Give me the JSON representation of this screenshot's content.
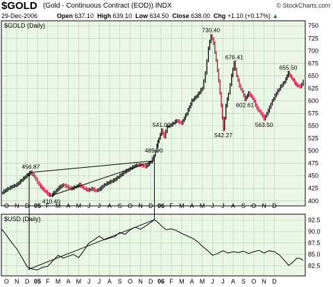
{
  "header": {
    "symbol": "$GOLD",
    "name": "(Gold - Continuous Contract (EOD))",
    "exchange": "INDX",
    "date": "29-Dec-2006",
    "open_label": "Open",
    "open": "637.10",
    "high_label": "High",
    "high": "639.10",
    "low_label": "Low",
    "low": "634.50",
    "close_label": "Close",
    "close": "638.00",
    "chg_label": "Chg",
    "chg": "+1.10 (+0.17%)",
    "chg_arrow": "▲",
    "logo": "© StockCharts.com"
  },
  "colors": {
    "panel_bg": "#eaf7e6",
    "grid": "#b9d6b3",
    "up_bar": "#000000",
    "down_bar": "#cc0033",
    "line": "#000000"
  },
  "chart_data": [
    {
      "type": "line",
      "panel_label": "$GOLD (Daily)",
      "y_ticks": [
        400,
        425,
        450,
        475,
        500,
        525,
        550,
        575,
        600,
        625,
        650,
        675,
        700,
        725,
        750
      ],
      "ylim": [
        390,
        760
      ],
      "x_ticks": [
        "O",
        "N",
        "D",
        "05",
        "F",
        "M",
        "A",
        "M",
        "J",
        "J",
        "A",
        "S",
        "O",
        "N",
        "D",
        "06",
        "F",
        "M",
        "A",
        "M",
        "J",
        "J",
        "A",
        "S",
        "O",
        "N",
        "D"
      ],
      "x_bold": [
        "05",
        "06"
      ],
      "series": [
        {
          "points": [
            [
              0,
              415
            ],
            [
              0.5,
              422
            ],
            [
              1,
              428
            ],
            [
              1.5,
              432
            ],
            [
              2,
              442
            ],
            [
              2.5,
              451
            ],
            [
              2.85,
              456.87
            ],
            [
              3.2,
              448
            ],
            [
              3.5,
              437
            ],
            [
              3.8,
              428
            ],
            [
              4.2,
              420
            ],
            [
              4.6,
              412
            ],
            [
              4.85,
              410.4
            ],
            [
              5.2,
              418
            ],
            [
              5.6,
              426
            ],
            [
              6.0,
              432
            ],
            [
              6.4,
              428
            ],
            [
              6.8,
              424
            ],
            [
              7.2,
              428
            ],
            [
              7.6,
              432
            ],
            [
              8.0,
              425
            ],
            [
              8.4,
              421
            ],
            [
              8.8,
              424
            ],
            [
              9.2,
              420
            ],
            [
              9.6,
              424
            ],
            [
              10.0,
              432
            ],
            [
              10.5,
              437
            ],
            [
              11.0,
              442
            ],
            [
              11.5,
              450
            ],
            [
              12.0,
              458
            ],
            [
              12.5,
              464
            ],
            [
              13.0,
              470
            ],
            [
              13.5,
              472
            ],
            [
              14.0,
              468
            ],
            [
              14.5,
              478
            ],
            [
              14.8,
              489.9
            ],
            [
              15.1,
              510
            ],
            [
              15.3,
              525
            ],
            [
              15.55,
              541
            ],
            [
              15.8,
              528
            ],
            [
              16.1,
              548
            ],
            [
              16.5,
              552
            ],
            [
              17.0,
              560
            ],
            [
              17.5,
              555
            ],
            [
              18.0,
              575
            ],
            [
              18.5,
              600
            ],
            [
              19.0,
              610
            ],
            [
              19.5,
              625
            ],
            [
              19.8,
              655
            ],
            [
              20.1,
              705
            ],
            [
              20.35,
              730.4
            ],
            [
              20.6,
              715
            ],
            [
              20.85,
              680
            ],
            [
              21.1,
              640
            ],
            [
              21.35,
              590
            ],
            [
              21.55,
              542.27
            ],
            [
              21.8,
              590
            ],
            [
              22.05,
              615
            ],
            [
              22.35,
              650
            ],
            [
              22.6,
              676.41
            ],
            [
              22.85,
              650
            ],
            [
              23.1,
              630
            ],
            [
              23.4,
              618
            ],
            [
              23.65,
              602.61
            ],
            [
              24.0,
              615
            ],
            [
              24.4,
              605
            ],
            [
              24.8,
              585
            ],
            [
              25.2,
              575
            ],
            [
              25.5,
              563.5
            ],
            [
              25.9,
              580
            ],
            [
              26.3,
              600
            ],
            [
              26.7,
              615
            ],
            [
              27.1,
              628
            ],
            [
              27.5,
              638
            ],
            [
              27.85,
              655.5
            ],
            [
              28.2,
              645
            ],
            [
              28.6,
              632
            ],
            [
              29.0,
              628
            ],
            [
              29.3,
              638
            ]
          ]
        }
      ],
      "annotations": [
        {
          "x": 2.85,
          "y": 456.87,
          "label": "456.87"
        },
        {
          "x": 4.85,
          "y": 410.4,
          "label": "410.40"
        },
        {
          "x": 14.8,
          "y": 489.9,
          "label": "489.90"
        },
        {
          "x": 15.55,
          "y": 541.0,
          "label": "541.00"
        },
        {
          "x": 20.35,
          "y": 730.4,
          "label": "730.40"
        },
        {
          "x": 21.55,
          "y": 542.27,
          "label": "542.27"
        },
        {
          "x": 22.6,
          "y": 676.41,
          "label": "676.41"
        },
        {
          "x": 23.65,
          "y": 602.61,
          "label": "602.61"
        },
        {
          "x": 25.5,
          "y": 563.5,
          "label": "563.50"
        },
        {
          "x": 27.85,
          "y": 655.5,
          "label": "655.50"
        }
      ],
      "trendlines": [
        [
          [
            2.85,
            456.87
          ],
          [
            14.8,
            480
          ]
        ],
        [
          [
            4.85,
            410.4
          ],
          [
            14.8,
            480
          ]
        ]
      ]
    },
    {
      "type": "line",
      "panel_label": "$USD (Daily)",
      "y_ticks": [
        82.5,
        85.0,
        87.5,
        90.0,
        92.5
      ],
      "ylim": [
        80.3,
        93.8
      ],
      "x_ticks": [
        "O",
        "N",
        "D",
        "05",
        "F",
        "M",
        "A",
        "M",
        "J",
        "J",
        "A",
        "S",
        "O",
        "N",
        "D",
        "06",
        "F",
        "M",
        "A",
        "M",
        "J",
        "J",
        "A",
        "S",
        "O",
        "N",
        "D"
      ],
      "x_bold": [
        "05",
        "06"
      ],
      "series": [
        {
          "points": [
            [
              0,
              90.6
            ],
            [
              0.5,
              89.2
            ],
            [
              1,
              87.6
            ],
            [
              1.5,
              86.2
            ],
            [
              2,
              84.3
            ],
            [
              2.5,
              82.3
            ],
            [
              3.0,
              81.8
            ],
            [
              3.5,
              81.6
            ],
            [
              4.0,
              82.2
            ],
            [
              4.5,
              82.4
            ],
            [
              5.0,
              83.6
            ],
            [
              5.5,
              84.8
            ],
            [
              6.0,
              84.2
            ],
            [
              6.5,
              84.6
            ],
            [
              7.0,
              85.0
            ],
            [
              7.5,
              84.3
            ],
            [
              8.0,
              85.8
            ],
            [
              8.5,
              87.5
            ],
            [
              9.0,
              88.2
            ],
            [
              9.5,
              89.0
            ],
            [
              10.0,
              88.2
            ],
            [
              10.5,
              88.6
            ],
            [
              11.0,
              88.9
            ],
            [
              11.5,
              89.8
            ],
            [
              12.0,
              89.4
            ],
            [
              12.5,
              90.4
            ],
            [
              13.0,
              91.0
            ],
            [
              13.5,
              90.5
            ],
            [
              14.0,
              91.2
            ],
            [
              14.5,
              92.0
            ],
            [
              14.85,
              92.6
            ],
            [
              15.2,
              92.0
            ],
            [
              15.6,
              91.1
            ],
            [
              16.0,
              90.4
            ],
            [
              16.5,
              90.6
            ],
            [
              17.0,
              90.2
            ],
            [
              17.5,
              89.6
            ],
            [
              18.0,
              89.1
            ],
            [
              18.5,
              88.6
            ],
            [
              19.0,
              87.9
            ],
            [
              19.5,
              86.8
            ],
            [
              20.0,
              85.9
            ],
            [
              20.5,
              84.8
            ],
            [
              21.0,
              85.2
            ],
            [
              21.5,
              85.8
            ],
            [
              22.0,
              85.3
            ],
            [
              22.5,
              85.6
            ],
            [
              23.0,
              85.4
            ],
            [
              23.5,
              85.7
            ],
            [
              24.0,
              85.2
            ],
            [
              24.5,
              85.6
            ],
            [
              25.0,
              85.9
            ],
            [
              25.5,
              85.3
            ],
            [
              26.0,
              85.8
            ],
            [
              26.5,
              85.6
            ],
            [
              27.0,
              84.9
            ],
            [
              27.5,
              83.6
            ],
            [
              27.9,
              82.6
            ],
            [
              28.3,
              83.3
            ],
            [
              28.7,
              84.2
            ],
            [
              29.0,
              84.1
            ],
            [
              29.3,
              83.7
            ]
          ]
        }
      ],
      "trendlines": [
        [
          [
            2.6,
            81.7
          ],
          [
            14.85,
            92.6
          ]
        ]
      ]
    }
  ]
}
